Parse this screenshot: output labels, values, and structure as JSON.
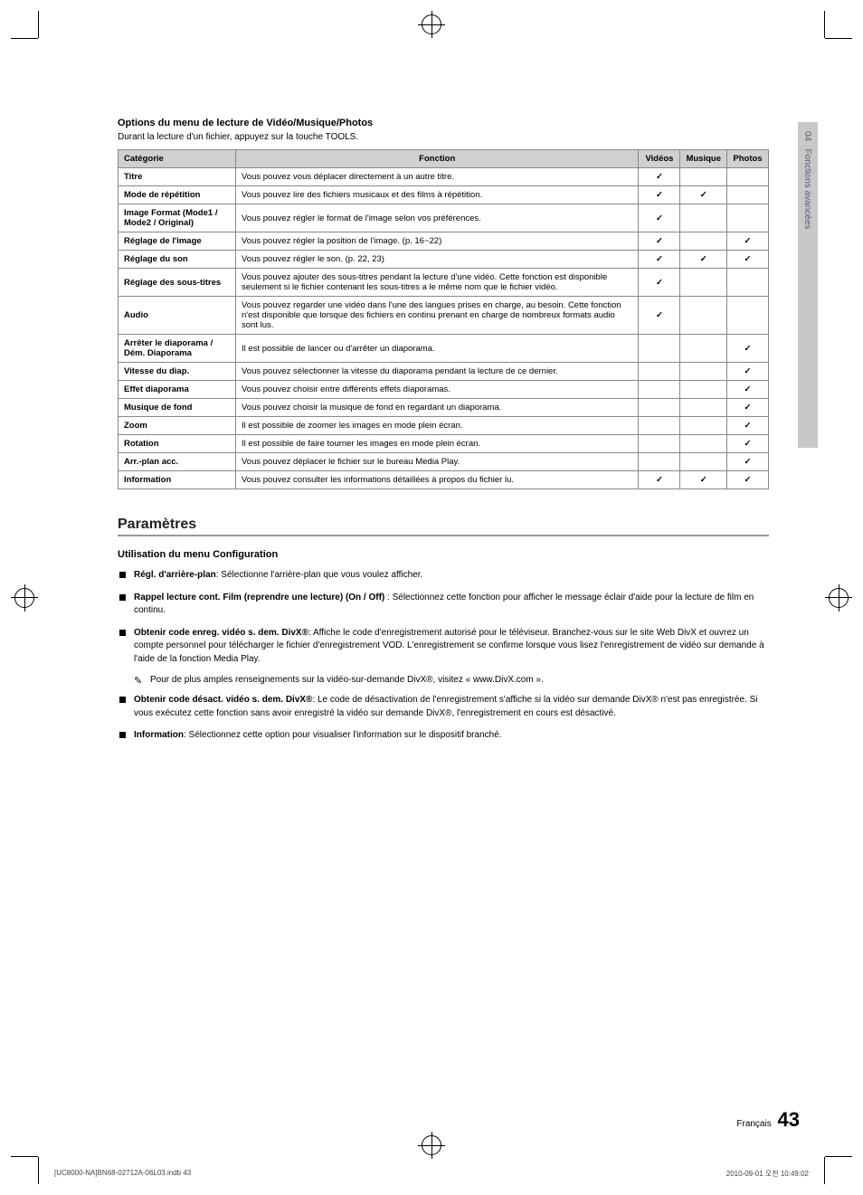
{
  "sideTab": {
    "chapter": "04",
    "label": "Fonctions avancées"
  },
  "optionsSection": {
    "title": "Options du menu de lecture de Vidéo/Musique/Photos",
    "subtitle": "Durant la lecture d'un fichier, appuyez sur la touche TOOLS."
  },
  "table": {
    "headers": {
      "cat": "Catégorie",
      "func": "Fonction",
      "videos": "Vidéos",
      "music": "Musique",
      "photos": "Photos"
    },
    "rows": [
      {
        "cat": "Titre",
        "func": "Vous pouvez vous déplacer directement à un autre titre.",
        "v": true,
        "m": false,
        "p": false
      },
      {
        "cat": "Mode de répétition",
        "func": "Vous pouvez lire des fichiers musicaux et des films à répétition.",
        "v": true,
        "m": true,
        "p": false
      },
      {
        "cat": "Image Format (Mode1 / Mode2 / Original)",
        "func": "Vous pouvez régler le format de l'image selon vos préférences.",
        "v": true,
        "m": false,
        "p": false
      },
      {
        "cat": "Réglage de l'image",
        "func": "Vous pouvez régler la position de l'image. (p. 16~22)",
        "v": true,
        "m": false,
        "p": true
      },
      {
        "cat": "Réglage du son",
        "func": "Vous pouvez régler le son. (p. 22, 23)",
        "v": true,
        "m": true,
        "p": true
      },
      {
        "cat": "Réglage des sous-titres",
        "func": "Vous pouvez ajouter des sous-titres pendant la lecture d'une vidéo. Cette fonction est disponible seulement si le fichier contenant les sous-titres a le même nom que le fichier vidéo.",
        "v": true,
        "m": false,
        "p": false
      },
      {
        "cat": "Audio",
        "func": "Vous pouvez regarder une vidéo dans l'une des langues prises en charge, au besoin. Cette fonction n'est disponible que lorsque des fichiers en continu prenant en charge de nombreux formats audio sont lus.",
        "v": true,
        "m": false,
        "p": false
      },
      {
        "cat": "Arrêter le diaporama / Dém. Diaporama",
        "func": "Il est possible de lancer ou d'arrêter un diaporama.",
        "v": false,
        "m": false,
        "p": true
      },
      {
        "cat": "Vitesse du diap.",
        "func": "Vous pouvez sélectionner la vitesse du diaporama pendant la lecture de ce dernier.",
        "v": false,
        "m": false,
        "p": true
      },
      {
        "cat": "Effet diaporama",
        "func": "Vous pouvez choisir entre différents effets diaporamas.",
        "v": false,
        "m": false,
        "p": true
      },
      {
        "cat": "Musique de fond",
        "func": "Vous pouvez choisir la musique de fond en regardant un diaporama.",
        "v": false,
        "m": false,
        "p": true
      },
      {
        "cat": "Zoom",
        "func": "Il est possible de zoomer les images en mode plein écran.",
        "v": false,
        "m": false,
        "p": true
      },
      {
        "cat": "Rotation",
        "func": "Il est possible de faire tourner les images en mode plein écran.",
        "v": false,
        "m": false,
        "p": true
      },
      {
        "cat": "Arr.-plan acc.",
        "func": "Vous pouvez déplacer le fichier sur le bureau Media Play.",
        "v": false,
        "m": false,
        "p": true
      },
      {
        "cat": "Information",
        "func": "Vous pouvez consulter les informations détaillées à propos du fichier lu.",
        "v": true,
        "m": true,
        "p": true
      }
    ]
  },
  "params": {
    "heading": "Paramètres",
    "configTitle": "Utilisation du menu Configuration",
    "items": [
      {
        "boldLead": "Régl. d'arrière-plan",
        "rest": ": Sélectionne l'arrière-plan que vous voulez afficher."
      },
      {
        "boldLead": "Rappel lecture cont. Film (reprendre une lecture) (On / Off)",
        "rest": " : Sélectionnez cette fonction pour afficher le message éclair d'aide pour la lecture de film en continu."
      },
      {
        "boldLead": "Obtenir code enreg. vidéo s. dem. DivX®",
        "rest": ": Affiche le code d'enregistrement autorisé pour le téléviseur. Branchez-vous sur le site Web DivX et ouvrez un compte personnel pour télécharger le fichier d'enregistrement VOD. L'enregistrement se confirme lorsque vous lisez l'enregistrement de vidéo sur demande à l'aide de la fonction Media Play.",
        "note": "Pour de plus amples renseignements sur la vidéo-sur-demande DivX®, visitez « www.DivX.com »."
      },
      {
        "boldLead": "Obtenir code désact. vidéo s. dem. DivX®",
        "rest": ": Le code de désactivation de l'enregistrement s'affiche si la vidéo sur demande DivX® n'est pas enregistrée. Si vous exécutez cette fonction sans avoir enregistré la vidéo sur demande DivX®, l'enregistrement en cours est désactivé."
      },
      {
        "boldLead": "Information",
        "rest": ": Sélectionnez cette option pour visualiser l'information sur le dispositif branché."
      }
    ]
  },
  "footer": {
    "lang": "Français",
    "page": "43"
  },
  "printLine": {
    "left": "[UC8000-NA]BN68-02712A-06L03.indb   43",
    "right": "2010-09-01   오전 10:49:02"
  }
}
